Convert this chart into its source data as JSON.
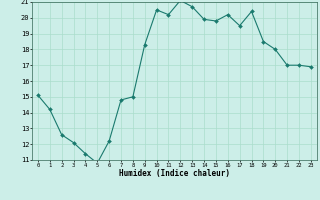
{
  "x": [
    0,
    1,
    2,
    3,
    4,
    5,
    6,
    7,
    8,
    9,
    10,
    11,
    12,
    13,
    14,
    15,
    16,
    17,
    18,
    19,
    20,
    21,
    22,
    23
  ],
  "y": [
    15.1,
    14.2,
    12.6,
    12.1,
    11.4,
    10.8,
    12.2,
    14.8,
    15.0,
    18.3,
    20.5,
    20.2,
    21.1,
    20.7,
    19.9,
    19.8,
    20.2,
    19.5,
    20.4,
    18.5,
    18.0,
    17.0,
    17.0,
    16.9
  ],
  "xlim": [
    -0.5,
    23.5
  ],
  "ylim": [
    11,
    21
  ],
  "xticks": [
    0,
    1,
    2,
    3,
    4,
    5,
    6,
    7,
    8,
    9,
    10,
    11,
    12,
    13,
    14,
    15,
    16,
    17,
    18,
    19,
    20,
    21,
    22,
    23
  ],
  "yticks": [
    11,
    12,
    13,
    14,
    15,
    16,
    17,
    18,
    19,
    20,
    21
  ],
  "xlabel": "Humidex (Indice chaleur)",
  "line_color": "#1a7a6e",
  "marker_color": "#1a7a6e",
  "bg_color": "#cceee8",
  "grid_color": "#aaddcc",
  "spine_color": "#336655"
}
